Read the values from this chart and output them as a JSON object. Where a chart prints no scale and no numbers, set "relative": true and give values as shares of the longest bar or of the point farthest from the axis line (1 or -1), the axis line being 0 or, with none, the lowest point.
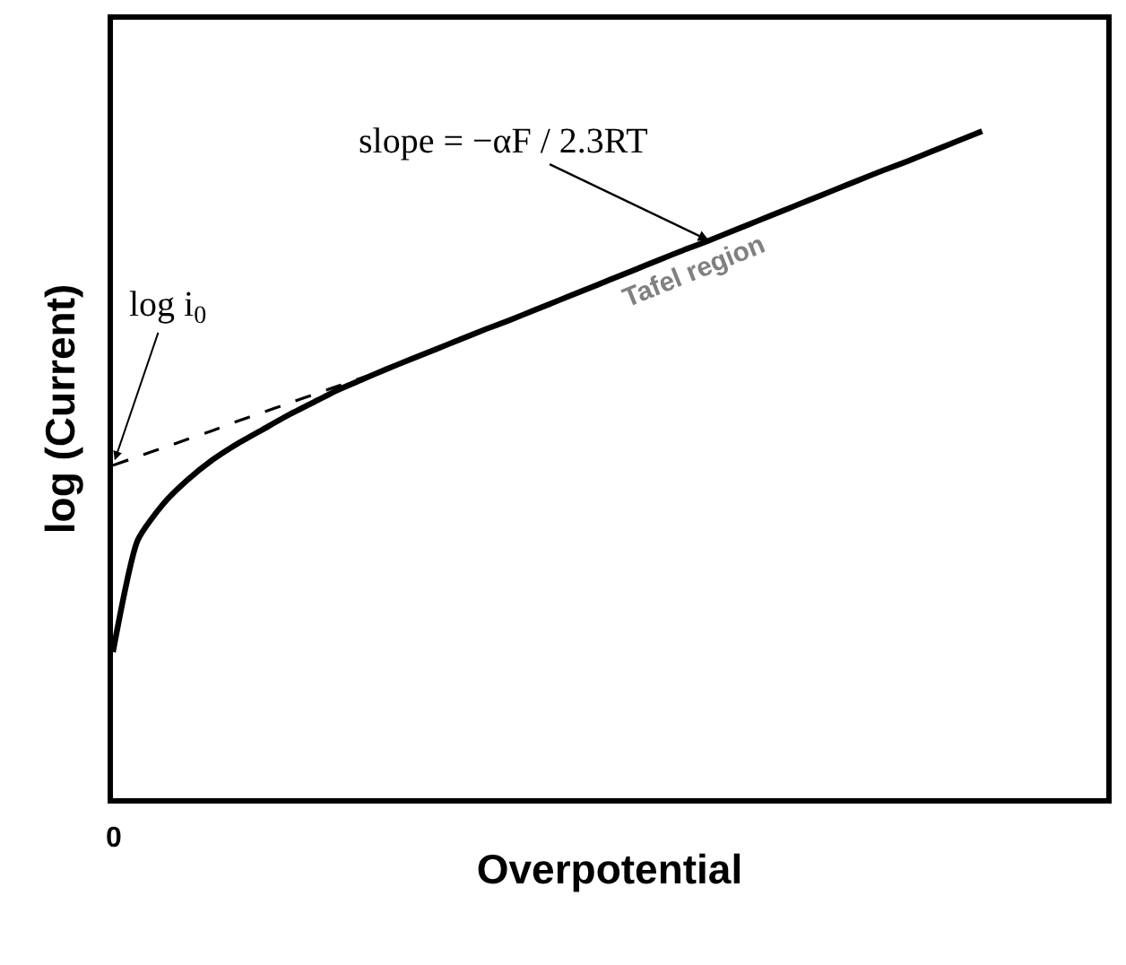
{
  "chart_data": {
    "type": "line",
    "relative": true,
    "xlabel": "Overpotential",
    "ylabel": "log (Current)",
    "categories": [
      null,
      null,
      null,
      null,
      null,
      null,
      null,
      null,
      null,
      null,
      null,
      null,
      null,
      null,
      null,
      null,
      null,
      null,
      null,
      null,
      null,
      null,
      null,
      null,
      null,
      null,
      null,
      null,
      null,
      null,
      null,
      null,
      null,
      null,
      null,
      null,
      null,
      null,
      null,
      null,
      null
    ],
    "series": [
      {
        "color": "#000000",
        "line_style": "solid",
        "values": [
          0.219,
          0.387,
          0.44,
          0.477,
          0.507,
          0.531,
          0.552,
          0.573,
          0.592,
          0.611,
          0.627,
          0.643,
          0.658,
          0.673,
          0.688,
          0.703,
          0.717,
          0.732,
          0.747,
          0.762,
          0.777,
          0.792,
          0.807,
          0.822,
          0.836,
          0.851,
          0.866,
          0.881,
          0.896,
          0.911,
          0.926,
          0.941,
          0.955,
          0.97,
          0.985,
          1.0,
          null,
          null,
          null,
          null,
          null
        ]
      },
      {
        "color": "#000000",
        "line_style": "dashed",
        "values": [
          0.499,
          0.512,
          0.525,
          0.538,
          0.551,
          0.565,
          0.578,
          0.591,
          0.604,
          0.617,
          0.63,
          0.643,
          null,
          null,
          null,
          null,
          null,
          null,
          null,
          null,
          null,
          null,
          null,
          null,
          null,
          null,
          null,
          null,
          null,
          null,
          null,
          null,
          null,
          null,
          null,
          null,
          null,
          null,
          null,
          null,
          null
        ]
      }
    ],
    "annotations": [
      "0",
      "log i$_{0}$",
      "slope = −αF / 2.3RT",
      "Tafel region"
    ],
    "tick_labels": false,
    "marker": "none"
  }
}
